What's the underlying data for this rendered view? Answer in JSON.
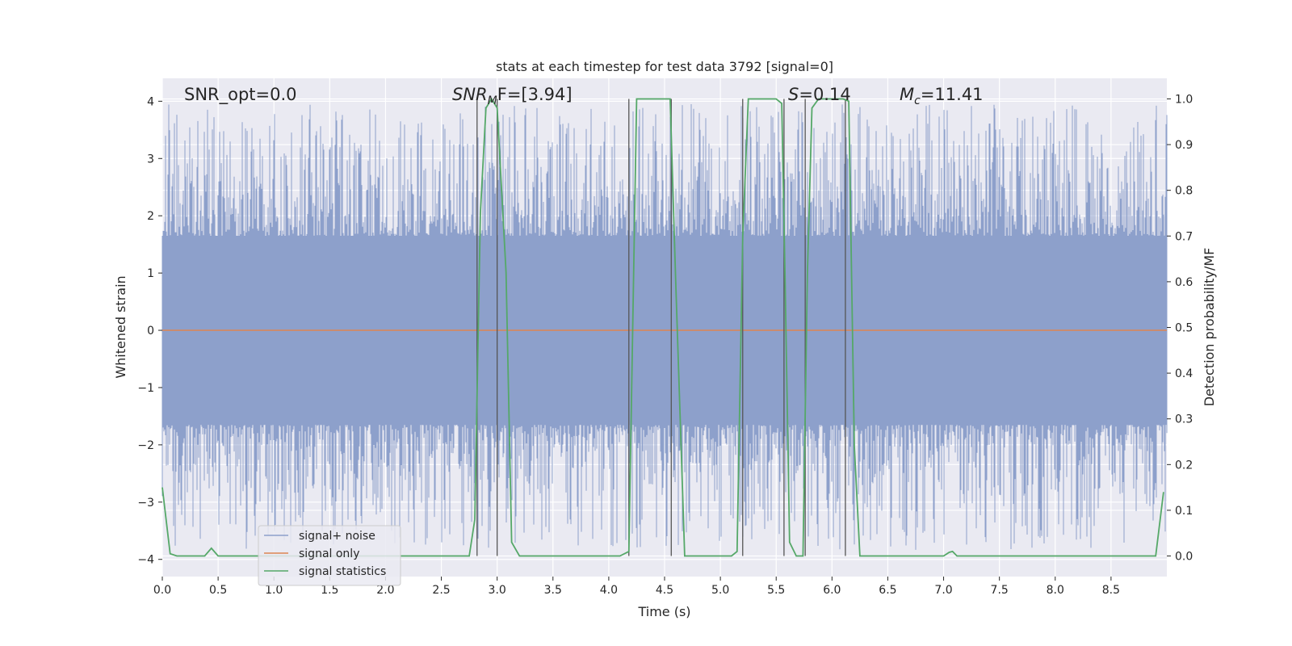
{
  "chart_data": {
    "type": "line",
    "title": "stats at each timestep for test data 3792 [signal=0]",
    "xlabel": "Time (s)",
    "ylabel": "Whitened strain",
    "y2label": "Detection probability/MF",
    "xlim": [
      0,
      9.0
    ],
    "ylim": [
      -4.3,
      4.4
    ],
    "y2lim": [
      -0.045,
      1.045
    ],
    "grid": true,
    "x_ticks": [
      "0.0",
      "0.5",
      "1.0",
      "1.5",
      "2.0",
      "2.5",
      "3.0",
      "3.5",
      "4.0",
      "4.5",
      "5.0",
      "5.5",
      "6.0",
      "6.5",
      "7.0",
      "7.5",
      "8.0",
      "8.5"
    ],
    "x_tick_values": [
      0,
      0.5,
      1.0,
      1.5,
      2.0,
      2.5,
      3.0,
      3.5,
      4.0,
      4.5,
      5.0,
      5.5,
      6.0,
      6.5,
      7.0,
      7.5,
      8.0,
      8.5
    ],
    "y_ticks": [
      "4",
      "3",
      "2",
      "1",
      "0",
      "−1",
      "−2",
      "−3",
      "−4"
    ],
    "y_tick_values": [
      4,
      3,
      2,
      1,
      0,
      -1,
      -2,
      -3,
      -4
    ],
    "y2_ticks": [
      "1.0",
      "0.9",
      "0.8",
      "0.7",
      "0.6",
      "0.5",
      "0.4",
      "0.3",
      "0.2",
      "0.1",
      "0.0"
    ],
    "y2_tick_values": [
      1.0,
      0.9,
      0.8,
      0.7,
      0.6,
      0.5,
      0.4,
      0.3,
      0.2,
      0.1,
      0.0
    ],
    "annotations": {
      "snr_opt": "SNR_opt=0.0",
      "snr_mf_base": "SNR",
      "snr_mf_sub": "M",
      "snr_mf_rest": "F=[3.94]",
      "s_var": "S",
      "s_rest": "=0.14",
      "mc_var": "M",
      "mc_sub": "c",
      "mc_rest": "=11.41"
    },
    "legend": {
      "position": "lower-left",
      "items": [
        "signal+ noise",
        "signal only",
        "signal statistics"
      ]
    },
    "colors": {
      "noise": "#8da0cb",
      "signal": "#dd8452",
      "stats": "#55a868",
      "vlines": "#555555",
      "plot_bg": "#eaeaf2"
    },
    "series": [
      {
        "name": "signal+ noise",
        "kind": "noise-band",
        "x_range": [
          0,
          9.0
        ],
        "core_amplitude": 1.65,
        "peak_amplitude": 3.95,
        "sample_rate_hz": 2048
      },
      {
        "name": "signal only",
        "kind": "constant",
        "value": 0.0
      },
      {
        "name": "signal statistics",
        "axis": "y2",
        "x": [
          0.0,
          0.07,
          0.13,
          0.2,
          0.38,
          0.44,
          0.5,
          0.6,
          0.8,
          1.0,
          1.5,
          2.0,
          2.5,
          2.75,
          2.8,
          2.85,
          2.9,
          2.95,
          3.0,
          3.08,
          3.13,
          3.2,
          3.3,
          3.5,
          4.0,
          4.1,
          4.18,
          4.25,
          4.3,
          4.45,
          4.55,
          4.6,
          4.68,
          4.75,
          4.9,
          5.1,
          5.15,
          5.2,
          5.25,
          5.3,
          5.45,
          5.5,
          5.55,
          5.58,
          5.62,
          5.68,
          5.74,
          5.78,
          5.82,
          5.88,
          5.95,
          6.05,
          6.1,
          6.15,
          6.2,
          6.25,
          6.35,
          6.5,
          7.0,
          7.05,
          7.08,
          7.12,
          7.2,
          7.5,
          8.0,
          8.5,
          8.9,
          8.97
        ],
        "values": [
          0.15,
          0.005,
          0.0,
          0.0,
          0.0,
          0.017,
          0.0,
          0.0,
          0.0,
          0.0,
          0.0,
          0.0,
          0.0,
          0.0,
          0.08,
          0.75,
          0.98,
          1.0,
          0.98,
          0.62,
          0.03,
          0.0,
          0.0,
          0.0,
          0.0,
          0.0,
          0.01,
          1.0,
          1.0,
          1.0,
          1.0,
          0.6,
          0.0,
          0.0,
          0.0,
          0.0,
          0.01,
          0.7,
          1.0,
          1.0,
          1.0,
          1.0,
          0.99,
          0.6,
          0.03,
          0.0,
          0.0,
          0.62,
          0.98,
          1.0,
          1.0,
          1.0,
          1.0,
          0.995,
          0.24,
          0.0,
          0.0,
          0.0,
          0.0,
          0.008,
          0.01,
          0.0,
          0.0,
          0.0,
          0.0,
          0.0,
          0.0,
          0.14
        ]
      },
      {
        "name": "transition markers",
        "kind": "vertical-lines",
        "x": [
          2.82,
          3.0,
          4.18,
          4.56,
          5.2,
          5.57,
          5.76,
          6.12
        ],
        "y_range": [
          0.0,
          1.0
        ]
      }
    ]
  }
}
